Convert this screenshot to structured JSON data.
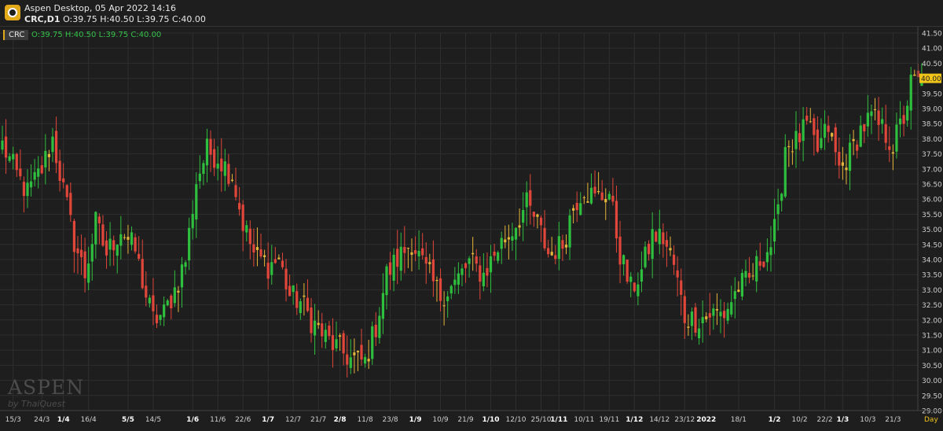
{
  "app": {
    "title": "Aspen Desktop, 05 Apr 2022 14:16",
    "symbol_line": "CRC,D1",
    "ohlc_line": "O:39.75 H:40.50 L:39.75 C:40.00",
    "logo_text": "ASPEN"
  },
  "chart_panel": {
    "symbol_badge": "CRC",
    "ohlc_label": "O:39.75 H:40.50 L:39.75 C:40.00",
    "watermark": "ASPEN",
    "watermark_sub": "by ThaiQuest",
    "period_label": "Day",
    "last_price_label": "40.00"
  },
  "colors": {
    "up": "#2fbf3f",
    "down": "#e0463a",
    "doji": "#e6b63a",
    "grid": "#2f2f2f",
    "axis_text": "#cfcfcf",
    "price_tag": "#f0c419"
  },
  "chart_data": {
    "type": "candlestick",
    "title": "CRC,D1",
    "ylim": [
      29.0,
      41.5
    ],
    "y_ticks": [
      "29.00",
      "29.50",
      "30.00",
      "30.50",
      "31.00",
      "31.50",
      "32.00",
      "32.50",
      "33.00",
      "33.50",
      "34.00",
      "34.50",
      "35.00",
      "35.50",
      "36.00",
      "36.50",
      "37.00",
      "37.50",
      "38.00",
      "38.50",
      "39.00",
      "39.50",
      "40.00",
      "40.50",
      "41.00",
      "41.50"
    ],
    "x_ticks": [
      {
        "label": "15/3",
        "i": 3,
        "bold": false
      },
      {
        "label": "24/3",
        "i": 11,
        "bold": false
      },
      {
        "label": "1/4",
        "i": 17,
        "bold": true
      },
      {
        "label": "16/4",
        "i": 24,
        "bold": false
      },
      {
        "label": "5/5",
        "i": 35,
        "bold": true
      },
      {
        "label": "14/5",
        "i": 42,
        "bold": false
      },
      {
        "label": "1/6",
        "i": 53,
        "bold": true
      },
      {
        "label": "11/6",
        "i": 60,
        "bold": false
      },
      {
        "label": "22/6",
        "i": 67,
        "bold": false
      },
      {
        "label": "1/7",
        "i": 74,
        "bold": true
      },
      {
        "label": "12/7",
        "i": 81,
        "bold": false
      },
      {
        "label": "21/7",
        "i": 88,
        "bold": false
      },
      {
        "label": "2/8",
        "i": 94,
        "bold": true
      },
      {
        "label": "11/8",
        "i": 101,
        "bold": false
      },
      {
        "label": "23/8",
        "i": 108,
        "bold": false
      },
      {
        "label": "1/9",
        "i": 115,
        "bold": true
      },
      {
        "label": "10/9",
        "i": 122,
        "bold": false
      },
      {
        "label": "21/9",
        "i": 129,
        "bold": false
      },
      {
        "label": "1/10",
        "i": 136,
        "bold": true
      },
      {
        "label": "12/10",
        "i": 143,
        "bold": false
      },
      {
        "label": "25/10",
        "i": 150,
        "bold": false
      },
      {
        "label": "1/11",
        "i": 155,
        "bold": true
      },
      {
        "label": "10/11",
        "i": 162,
        "bold": false
      },
      {
        "label": "19/11",
        "i": 169,
        "bold": false
      },
      {
        "label": "1/12",
        "i": 176,
        "bold": true
      },
      {
        "label": "14/12",
        "i": 183,
        "bold": false
      },
      {
        "label": "23/12",
        "i": 190,
        "bold": false
      },
      {
        "label": "2022",
        "i": 196,
        "bold": true
      },
      {
        "label": "18/1",
        "i": 205,
        "bold": false
      },
      {
        "label": "1/2",
        "i": 215,
        "bold": true
      },
      {
        "label": "10/2",
        "i": 222,
        "bold": false
      },
      {
        "label": "22/2",
        "i": 229,
        "bold": false
      },
      {
        "label": "1/3",
        "i": 234,
        "bold": true
      },
      {
        "label": "10/3",
        "i": 241,
        "bold": false
      },
      {
        "label": "21/3",
        "i": 248,
        "bold": false
      }
    ],
    "anchors": [
      [
        0,
        37.8
      ],
      [
        4,
        36.8
      ],
      [
        7,
        36.2
      ],
      [
        11,
        37.0
      ],
      [
        14,
        38.0
      ],
      [
        17,
        36.3
      ],
      [
        20,
        34.6
      ],
      [
        23,
        33.5
      ],
      [
        26,
        35.2
      ],
      [
        29,
        34.2
      ],
      [
        33,
        35.0
      ],
      [
        37,
        34.3
      ],
      [
        40,
        32.8
      ],
      [
        42,
        32.0
      ],
      [
        45,
        32.2
      ],
      [
        48,
        33.0
      ],
      [
        51,
        34.0
      ],
      [
        54,
        36.6
      ],
      [
        57,
        37.6
      ],
      [
        60,
        37.4
      ],
      [
        64,
        36.8
      ],
      [
        67,
        35.2
      ],
      [
        70,
        34.2
      ],
      [
        74,
        33.8
      ],
      [
        77,
        34.0
      ],
      [
        80,
        32.8
      ],
      [
        83,
        32.6
      ],
      [
        86,
        32.0
      ],
      [
        90,
        31.4
      ],
      [
        94,
        31.0
      ],
      [
        97,
        30.7
      ],
      [
        101,
        30.6
      ],
      [
        104,
        31.8
      ],
      [
        107,
        33.5
      ],
      [
        110,
        34.0
      ],
      [
        114,
        34.6
      ],
      [
        118,
        33.6
      ],
      [
        122,
        32.8
      ],
      [
        126,
        33.2
      ],
      [
        130,
        33.9
      ],
      [
        134,
        33.5
      ],
      [
        138,
        34.4
      ],
      [
        142,
        35.0
      ],
      [
        146,
        35.8
      ],
      [
        149,
        35.2
      ],
      [
        152,
        34.2
      ],
      [
        156,
        34.5
      ],
      [
        159,
        35.8
      ],
      [
        162,
        36.4
      ],
      [
        165,
        36.0
      ],
      [
        169,
        36.2
      ],
      [
        172,
        34.2
      ],
      [
        175,
        33.0
      ],
      [
        178,
        33.6
      ],
      [
        181,
        34.8
      ],
      [
        184,
        34.7
      ],
      [
        187,
        33.8
      ],
      [
        190,
        32.1
      ],
      [
        193,
        32.0
      ],
      [
        197,
        32.2
      ],
      [
        201,
        32.2
      ],
      [
        205,
        33.1
      ],
      [
        208,
        33.3
      ],
      [
        211,
        34.0
      ],
      [
        214,
        34.5
      ],
      [
        216,
        35.4
      ],
      [
        218,
        37.8
      ],
      [
        221,
        37.9
      ],
      [
        224,
        38.4
      ],
      [
        227,
        37.6
      ],
      [
        230,
        38.4
      ],
      [
        233,
        37.0
      ],
      [
        236,
        37.5
      ],
      [
        239,
        38.3
      ],
      [
        242,
        38.7
      ],
      [
        245,
        38.3
      ],
      [
        248,
        37.8
      ],
      [
        251,
        38.7
      ],
      [
        253,
        39.8
      ],
      [
        256,
        39.9
      ]
    ],
    "candle_count": 257,
    "last_close": 40.0,
    "last_open": 39.75,
    "last_high": 40.5,
    "last_low": 39.75
  }
}
